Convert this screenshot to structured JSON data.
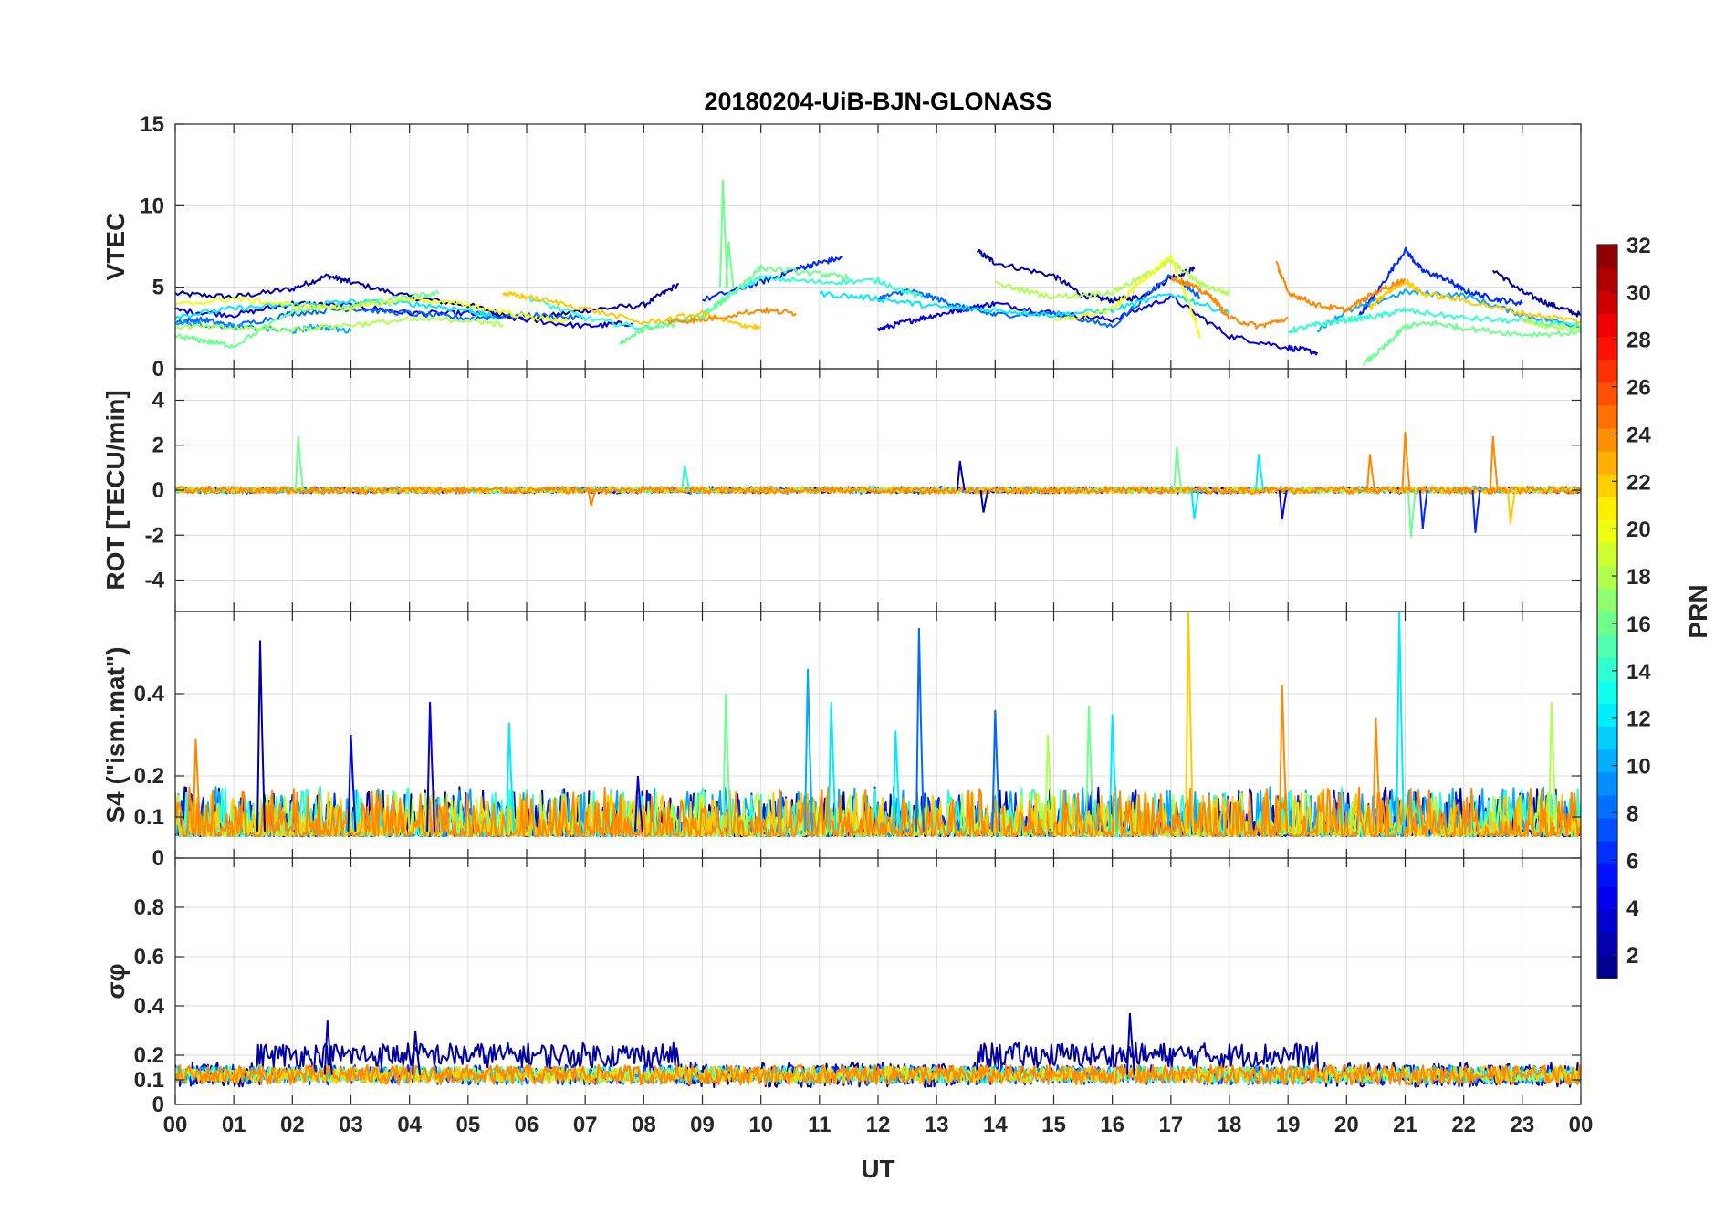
{
  "chart_data": {
    "type": "line",
    "title": "20180204-UiB-BJN-GLONASS",
    "xlabel": "UT",
    "x_ticks": [
      "00",
      "01",
      "02",
      "03",
      "04",
      "05",
      "06",
      "07",
      "08",
      "09",
      "10",
      "11",
      "12",
      "13",
      "14",
      "15",
      "16",
      "17",
      "18",
      "19",
      "20",
      "21",
      "22",
      "23",
      "00"
    ],
    "xlim_hours": [
      0,
      24
    ],
    "grid": true,
    "panels": [
      {
        "key": "vtec",
        "ylabel": "VTEC",
        "ylim": [
          0,
          15
        ],
        "yticks": [
          0,
          5,
          10,
          15
        ],
        "tick_labels": [
          "0",
          "5",
          "10",
          "15"
        ],
        "spikes": [
          {
            "x": 9.35,
            "y": 11.6,
            "prn": 16
          },
          {
            "x": 9.45,
            "y": 7.8,
            "prn": 16
          }
        ],
        "series": [
          {
            "prn": 2,
            "x": [
              0,
              1,
              2,
              2.6,
              3,
              4,
              5,
              6,
              7,
              8,
              8.6
            ],
            "y": [
              4.6,
              4.4,
              4.9,
              5.7,
              5.3,
              4.4,
              3.9,
              3.0,
              3.6,
              3.9,
              5.2
            ]
          },
          {
            "prn": 2,
            "x": [
              13.7,
              14,
              15,
              15.5,
              16,
              16.5,
              17,
              17.4
            ],
            "y": [
              7.2,
              6.5,
              5.7,
              4.5,
              4.2,
              4.4,
              5.6,
              6.1
            ]
          },
          {
            "prn": 2,
            "x": [
              22.5,
              23,
              23.5,
              24
            ],
            "y": [
              6.1,
              4.7,
              3.9,
              3.3
            ]
          },
          {
            "prn": 4,
            "x": [
              0,
              1,
              2,
              3,
              4,
              5,
              6,
              7,
              7.8
            ],
            "y": [
              3.6,
              3.3,
              4.0,
              3.9,
              3.4,
              3.4,
              3.0,
              2.6,
              2.8
            ]
          },
          {
            "prn": 4,
            "x": [
              12,
              12.5,
              13,
              13.5,
              14,
              15,
              16,
              17,
              18,
              19,
              19.5
            ],
            "y": [
              2.4,
              2.9,
              3.3,
              3.7,
              4.0,
              3.4,
              3.0,
              4.4,
              2.0,
              1.3,
              1.0
            ]
          },
          {
            "prn": 6,
            "x": [
              9,
              10,
              10.6,
              11,
              11.4
            ],
            "y": [
              4.2,
              5.3,
              6.1,
              6.5,
              6.8
            ]
          },
          {
            "prn": 6,
            "x": [
              20.2,
              20.5,
              21,
              21.3,
              21.7,
              22,
              22.5,
              23
            ],
            "y": [
              3.2,
              4.6,
              7.3,
              6.0,
              5.5,
              4.8,
              4.3,
              4.0
            ]
          },
          {
            "prn": 8,
            "x": [
              0,
              0.5,
              1,
              2,
              3,
              4,
              5,
              6,
              7
            ],
            "y": [
              2.9,
              3.0,
              2.6,
              3.4,
              3.7,
              3.4,
              3.1,
              3.3,
              3.1
            ]
          },
          {
            "prn": 8,
            "x": [
              12,
              12.5,
              13,
              13.5,
              14,
              15,
              16,
              17,
              17.5
            ],
            "y": [
              4.3,
              4.8,
              4.3,
              3.7,
              3.3,
              3.4,
              2.6,
              5.8,
              4.4
            ]
          },
          {
            "prn": 10,
            "x": [
              0,
              1,
              2,
              2.4,
              3
            ],
            "y": [
              2.8,
              2.6,
              2.3,
              2.6,
              2.3
            ]
          },
          {
            "prn": 10,
            "x": [
              19.5,
              20,
              21,
              22,
              23,
              24
            ],
            "y": [
              2.4,
              3.5,
              4.7,
              4.5,
              3.3,
              2.6
            ]
          },
          {
            "prn": 12,
            "x": [
              0,
              1,
              2,
              3,
              4,
              5,
              5.5
            ],
            "y": [
              3.2,
              3.7,
              3.9,
              4.1,
              4.0,
              3.6,
              3.1
            ]
          },
          {
            "prn": 12,
            "x": [
              11,
              12,
              13,
              14,
              15,
              16,
              17,
              18
            ],
            "y": [
              4.6,
              4.3,
              3.8,
              3.6,
              3.3,
              3.6,
              4.6,
              3.4
            ]
          },
          {
            "prn": 14,
            "x": [
              6,
              7,
              8,
              9,
              9.5,
              10,
              11,
              12,
              12.8
            ],
            "y": [
              4.4,
              3.1,
              2.5,
              3.3,
              4.6,
              5.6,
              5.3,
              5.4,
              4.3
            ]
          },
          {
            "prn": 14,
            "x": [
              19,
              19.5,
              20,
              20.5,
              21,
              22,
              23,
              24
            ],
            "y": [
              2.3,
              2.7,
              3.0,
              3.2,
              3.6,
              3.1,
              2.9,
              2.6
            ]
          },
          {
            "prn": 16,
            "x": [
              0,
              0.5,
              1,
              2,
              3,
              4,
              4.5
            ],
            "y": [
              2.0,
              1.7,
              1.4,
              3.5,
              3.9,
              4.4,
              4.6
            ]
          },
          {
            "prn": 16,
            "x": [
              7.6,
              8,
              9,
              9.5,
              10,
              11,
              11.5
            ],
            "y": [
              1.6,
              2.4,
              3.1,
              4.6,
              6.2,
              5.8,
              5.6
            ]
          },
          {
            "prn": 16,
            "x": [
              20.3,
              20.7,
              21,
              21.5,
              22,
              23,
              24
            ],
            "y": [
              0.3,
              1.5,
              2.6,
              2.8,
              2.5,
              2.1,
              2.2
            ]
          },
          {
            "prn": 18,
            "x": [
              0,
              1,
              2,
              3,
              4,
              5,
              5.6
            ],
            "y": [
              2.6,
              2.5,
              2.4,
              2.7,
              3.0,
              3.0,
              2.7
            ]
          },
          {
            "prn": 18,
            "x": [
              14,
              15,
              16,
              16.5,
              17,
              17.5,
              18
            ],
            "y": [
              5.2,
              4.4,
              4.7,
              5.6,
              6.6,
              5.2,
              4.6
            ]
          },
          {
            "prn": 18,
            "x": [
              23,
              23.5,
              24
            ],
            "y": [
              3.0,
              2.6,
              2.4
            ]
          },
          {
            "prn": 20,
            "x": [
              0,
              1,
              2,
              3,
              4,
              5,
              6,
              6.7
            ],
            "y": [
              3.9,
              4.3,
              3.9,
              3.7,
              4.3,
              3.9,
              3.2,
              2.9
            ]
          },
          {
            "prn": 20,
            "x": [
              15,
              16,
              16.5,
              17,
              17.3,
              17.5
            ],
            "y": [
              2.9,
              3.6,
              5.4,
              6.8,
              4.1,
              2.0
            ]
          },
          {
            "prn": 22,
            "x": [
              5.6,
              6,
              7,
              8,
              9,
              9.5,
              10
            ],
            "y": [
              4.6,
              4.4,
              3.7,
              2.8,
              3.4,
              2.8,
              2.5
            ]
          },
          {
            "prn": 22,
            "x": [
              20.4,
              20.7,
              21,
              21.3,
              22,
              23,
              24
            ],
            "y": [
              3.7,
              4.7,
              5.4,
              4.6,
              4.2,
              3.4,
              2.9
            ]
          },
          {
            "prn": 24,
            "x": [
              8.4,
              9,
              10,
              10.6
            ],
            "y": [
              2.9,
              3.0,
              3.6,
              3.4
            ]
          },
          {
            "prn": 24,
            "x": [
              17,
              17.3,
              17.7,
              18,
              18.5,
              19
            ],
            "y": [
              5.6,
              5.2,
              4.4,
              3.1,
              2.6,
              3.1
            ]
          },
          {
            "prn": 24,
            "x": [
              18.8,
              19,
              19.5,
              20,
              20.5,
              21
            ],
            "y": [
              6.5,
              4.7,
              3.9,
              3.6,
              4.7,
              5.5
            ]
          }
        ]
      },
      {
        "key": "rot",
        "ylabel": "ROT [TECU/min]",
        "ylim": [
          -5.4,
          5.4
        ],
        "yticks": [
          -4,
          -2,
          0,
          2,
          4
        ],
        "tick_labels": [
          "-4",
          "-2",
          "0",
          "2",
          "4"
        ],
        "base": 0,
        "spikes": [
          {
            "x": 2.1,
            "y": 2.4,
            "prn": 16
          },
          {
            "x": 8.7,
            "y": 1.1,
            "prn": 14
          },
          {
            "x": 13.4,
            "y": 1.3,
            "prn": 2
          },
          {
            "x": 13.8,
            "y": -1.0,
            "prn": 2
          },
          {
            "x": 17.1,
            "y": 1.9,
            "prn": 16
          },
          {
            "x": 17.4,
            "y": -1.3,
            "prn": 12
          },
          {
            "x": 18.5,
            "y": 1.6,
            "prn": 12
          },
          {
            "x": 18.9,
            "y": -1.3,
            "prn": 4
          },
          {
            "x": 20.4,
            "y": 1.6,
            "prn": 24
          },
          {
            "x": 21.0,
            "y": 2.6,
            "prn": 24
          },
          {
            "x": 21.1,
            "y": -2.1,
            "prn": 16
          },
          {
            "x": 21.3,
            "y": -1.7,
            "prn": 6
          },
          {
            "x": 22.2,
            "y": -1.9,
            "prn": 6
          },
          {
            "x": 22.5,
            "y": 2.4,
            "prn": 24
          },
          {
            "x": 22.8,
            "y": -1.5,
            "prn": 22
          },
          {
            "x": 7.1,
            "y": -0.7,
            "prn": 24
          }
        ],
        "series": [
          {
            "prn": 2,
            "noise": 0.12
          },
          {
            "prn": 6,
            "noise": 0.15
          },
          {
            "prn": 10,
            "noise": 0.12
          },
          {
            "prn": 14,
            "noise": 0.13
          },
          {
            "prn": 18,
            "noise": 0.12
          },
          {
            "prn": 22,
            "noise": 0.14
          },
          {
            "prn": 24,
            "noise": 0.16
          }
        ]
      },
      {
        "key": "s4",
        "ylabel": "S4 (\"ism.mat\")",
        "ylim": [
          0,
          0.6
        ],
        "yticks": [
          0,
          0.1,
          0.2,
          0.4
        ],
        "tick_labels": [
          "0",
          "0.1",
          "0.2",
          "0.4"
        ],
        "base": 0.065,
        "spikes": [
          {
            "x": 1.45,
            "y": 0.53,
            "prn": 2
          },
          {
            "x": 3.0,
            "y": 0.3,
            "prn": 4
          },
          {
            "x": 4.35,
            "y": 0.38,
            "prn": 4
          },
          {
            "x": 5.7,
            "y": 0.33,
            "prn": 12
          },
          {
            "x": 7.9,
            "y": 0.2,
            "prn": 4
          },
          {
            "x": 9.4,
            "y": 0.4,
            "prn": 16
          },
          {
            "x": 10.8,
            "y": 0.46,
            "prn": 10
          },
          {
            "x": 11.2,
            "y": 0.38,
            "prn": 12
          },
          {
            "x": 12.3,
            "y": 0.31,
            "prn": 12
          },
          {
            "x": 12.7,
            "y": 0.56,
            "prn": 8
          },
          {
            "x": 14.0,
            "y": 0.36,
            "prn": 8
          },
          {
            "x": 14.9,
            "y": 0.3,
            "prn": 18
          },
          {
            "x": 15.6,
            "y": 0.37,
            "prn": 16
          },
          {
            "x": 16.0,
            "y": 0.35,
            "prn": 12
          },
          {
            "x": 17.3,
            "y": 0.6,
            "prn": 22
          },
          {
            "x": 18.9,
            "y": 0.42,
            "prn": 24
          },
          {
            "x": 20.5,
            "y": 0.34,
            "prn": 24
          },
          {
            "x": 20.9,
            "y": 0.6,
            "prn": 12
          },
          {
            "x": 23.5,
            "y": 0.38,
            "prn": 18
          },
          {
            "x": 0.35,
            "y": 0.29,
            "prn": 24
          }
        ],
        "series": [
          {
            "prn": 2,
            "noise": 0.04
          },
          {
            "prn": 6,
            "noise": 0.035
          },
          {
            "prn": 10,
            "noise": 0.04
          },
          {
            "prn": 14,
            "noise": 0.04
          },
          {
            "prn": 18,
            "noise": 0.035
          },
          {
            "prn": 22,
            "noise": 0.035
          },
          {
            "prn": 24,
            "noise": 0.04
          }
        ]
      },
      {
        "key": "sigma",
        "ylabel": "σφ",
        "ylim": [
          0,
          1
        ],
        "yticks": [
          0,
          0.1,
          0.2,
          0.4,
          0.6,
          0.8
        ],
        "tick_labels": [
          "0",
          "0.1",
          "0.2",
          "0.4",
          "0.6",
          "0.8"
        ],
        "base": 0.12,
        "series": [
          {
            "prn": 2,
            "noise": 0.05,
            "segments": [
              [
                1.4,
                8.6,
                0.2
              ],
              [
                13.7,
                19.5,
                0.2
              ]
            ]
          },
          {
            "prn": 6,
            "noise": 0.04
          },
          {
            "prn": 10,
            "noise": 0.035
          },
          {
            "prn": 14,
            "noise": 0.035
          },
          {
            "prn": 18,
            "noise": 0.03
          },
          {
            "prn": 22,
            "noise": 0.035
          },
          {
            "prn": 24,
            "noise": 0.04
          }
        ],
        "spikes": [
          {
            "x": 2.6,
            "y": 0.34,
            "prn": 2
          },
          {
            "x": 16.3,
            "y": 0.37,
            "prn": 2
          },
          {
            "x": 4.1,
            "y": 0.3,
            "prn": 2
          }
        ]
      }
    ],
    "colorbar": {
      "label": "PRN",
      "colormap": "jet",
      "range": [
        1,
        32
      ],
      "ticks": [
        2,
        4,
        6,
        8,
        10,
        12,
        14,
        16,
        18,
        20,
        22,
        24,
        26,
        28,
        30,
        32
      ],
      "tick_labels": [
        "2",
        "4",
        "6",
        "8",
        "10",
        "12",
        "14",
        "16",
        "18",
        "20",
        "22",
        "24",
        "26",
        "28",
        "30",
        "32"
      ]
    }
  }
}
